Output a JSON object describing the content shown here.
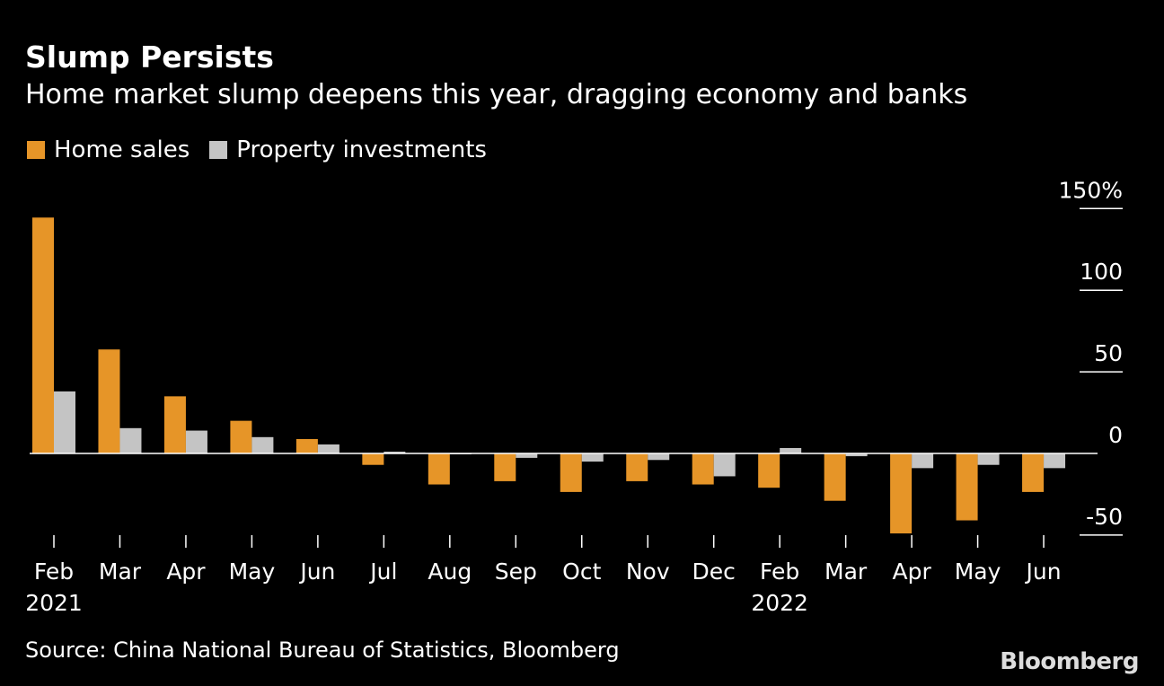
{
  "chart_data": {
    "type": "bar",
    "title": "Slump Persists",
    "subtitle": "Home market slump deepens this year, dragging economy and banks",
    "categories": [
      "Feb",
      "Mar",
      "Apr",
      "May",
      "Jun",
      "Jul",
      "Aug",
      "Sep",
      "Oct",
      "Nov",
      "Dec",
      "Feb",
      "Mar",
      "Apr",
      "May",
      "Jun"
    ],
    "year_labels": {
      "0": "2021",
      "11": "2022"
    },
    "series": [
      {
        "name": "Home sales",
        "color": "#e69528",
        "values": [
          144.5,
          63.7,
          35,
          20,
          8.8,
          -7,
          -19,
          -17,
          -23.6,
          -17,
          -19,
          -21,
          -29,
          -49,
          -41,
          -23.6
        ]
      },
      {
        "name": "Property investments",
        "color": "#c4c4c4",
        "values": [
          38,
          15.5,
          14,
          10,
          5.5,
          1.1,
          -0.5,
          -2.7,
          -5,
          -4,
          -14,
          3.3,
          -1.7,
          -9,
          -7,
          -9
        ]
      }
    ],
    "yticks": [
      150,
      100,
      50,
      0,
      -50
    ],
    "ytick_labels": [
      "150%",
      "100",
      "50",
      "0",
      "-50"
    ],
    "ylim": [
      -55,
      155
    ],
    "legend_position": "top-left",
    "source": "Source: China National Bureau of Statistics, Bloomberg",
    "logo": "Bloomberg"
  }
}
